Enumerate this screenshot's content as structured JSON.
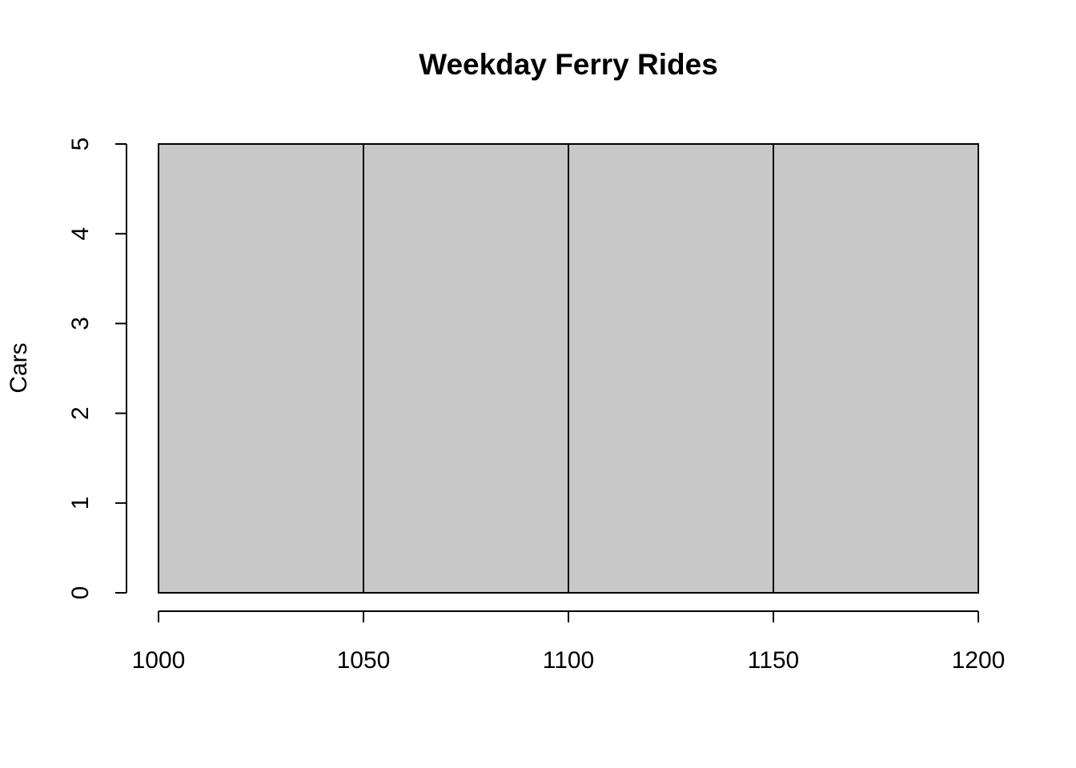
{
  "chart_data": {
    "type": "bar",
    "title": "Weekday Ferry Rides",
    "xlabel": "",
    "ylabel": "Cars",
    "xlim": [
      1000,
      1200
    ],
    "ylim": [
      0,
      5
    ],
    "x_ticks": [
      1000,
      1050,
      1100,
      1150,
      1200
    ],
    "y_ticks": [
      0,
      1,
      2,
      3,
      4,
      5
    ],
    "bins": [
      {
        "start": 1000,
        "end": 1050,
        "value": 5
      },
      {
        "start": 1050,
        "end": 1100,
        "value": 5
      },
      {
        "start": 1100,
        "end": 1150,
        "value": 5
      },
      {
        "start": 1150,
        "end": 1200,
        "value": 5
      }
    ],
    "bar_color": "#c8c8c8",
    "grid": false,
    "legend": false
  }
}
